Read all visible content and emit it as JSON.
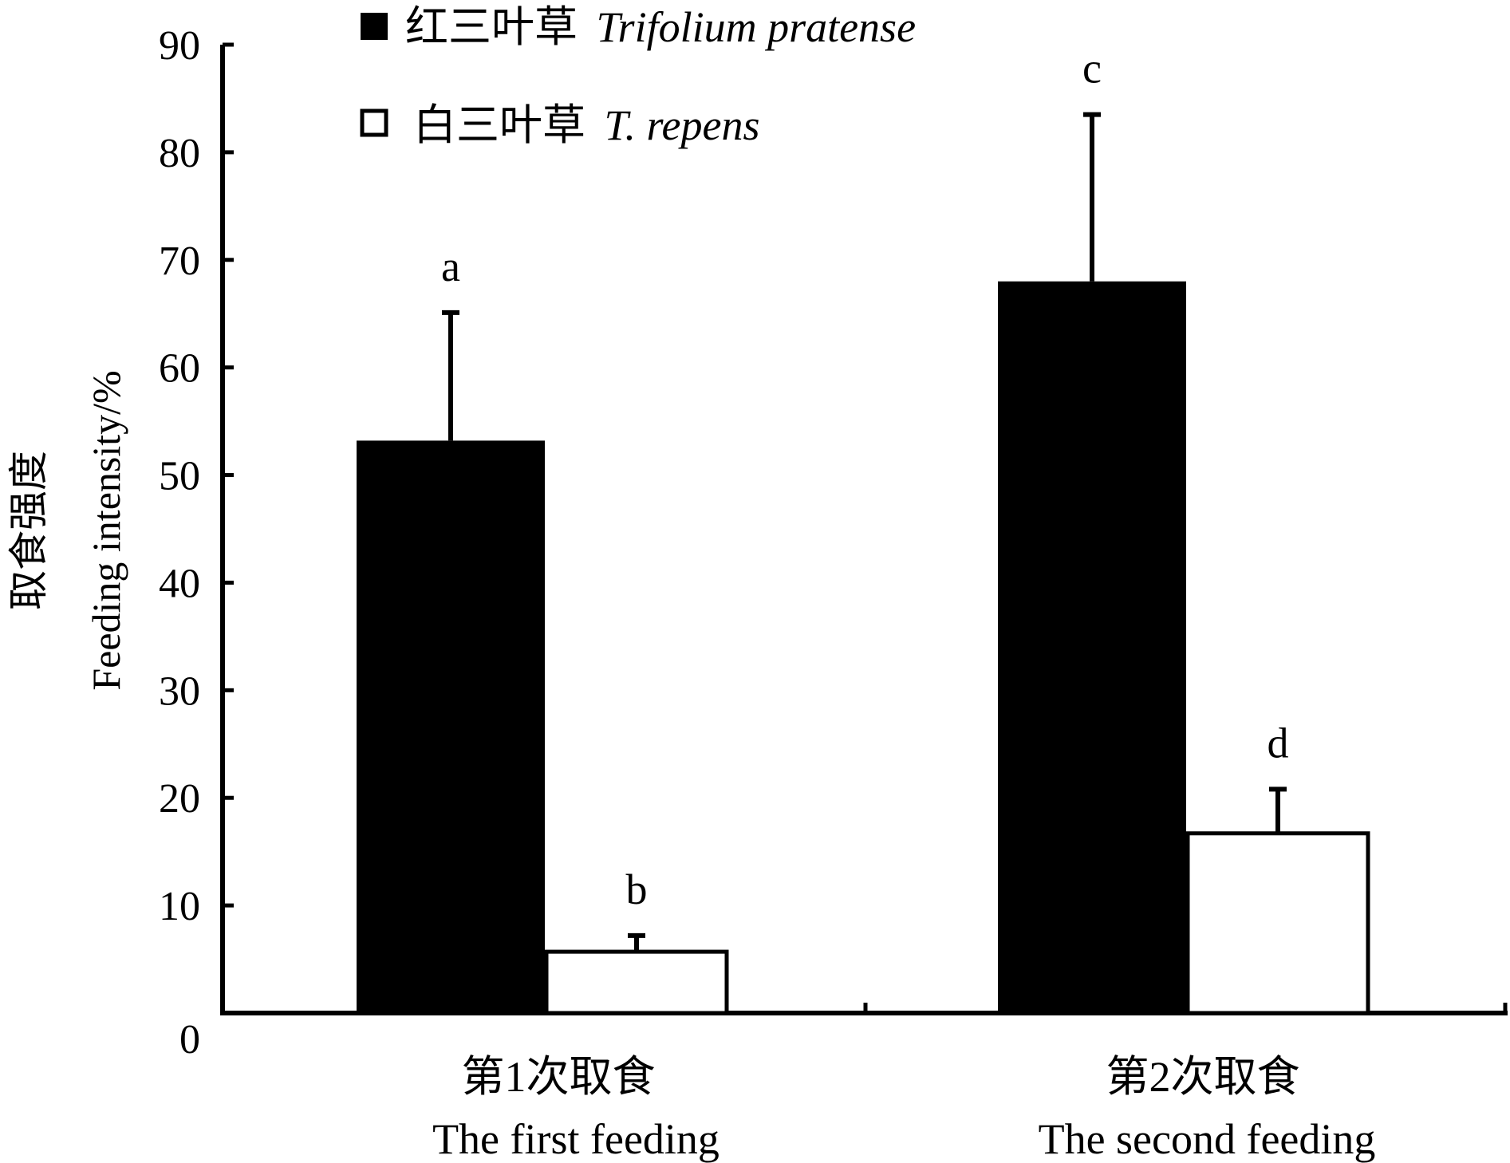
{
  "chart_data": {
    "type": "bar",
    "title": "",
    "xlabel": "",
    "ylabel_cn": "取食强度",
    "ylabel_en": "Feeding intensity/%",
    "ylim": [
      0,
      90
    ],
    "yticks": [
      0,
      10,
      20,
      30,
      40,
      50,
      60,
      70,
      80,
      90
    ],
    "legend_position": "top-left",
    "categories": [
      {
        "cn": "第1次取食",
        "en": "The first feeding"
      },
      {
        "cn": "第2次取食",
        "en": "The second feeding"
      }
    ],
    "series": [
      {
        "name_cn": "红三叶草",
        "name_latin": "Trifolium pratense",
        "fill": "#000000",
        "values": [
          53.2,
          68.0
        ],
        "errors": [
          11.9,
          15.5
        ],
        "letters": [
          "a",
          "c"
        ]
      },
      {
        "name_cn": "白三叶草",
        "name_latin": "T. repens",
        "fill": "#ffffff",
        "values": [
          5.7,
          16.7
        ],
        "errors": [
          1.5,
          4.1
        ],
        "letters": [
          "b",
          "d"
        ]
      }
    ]
  }
}
